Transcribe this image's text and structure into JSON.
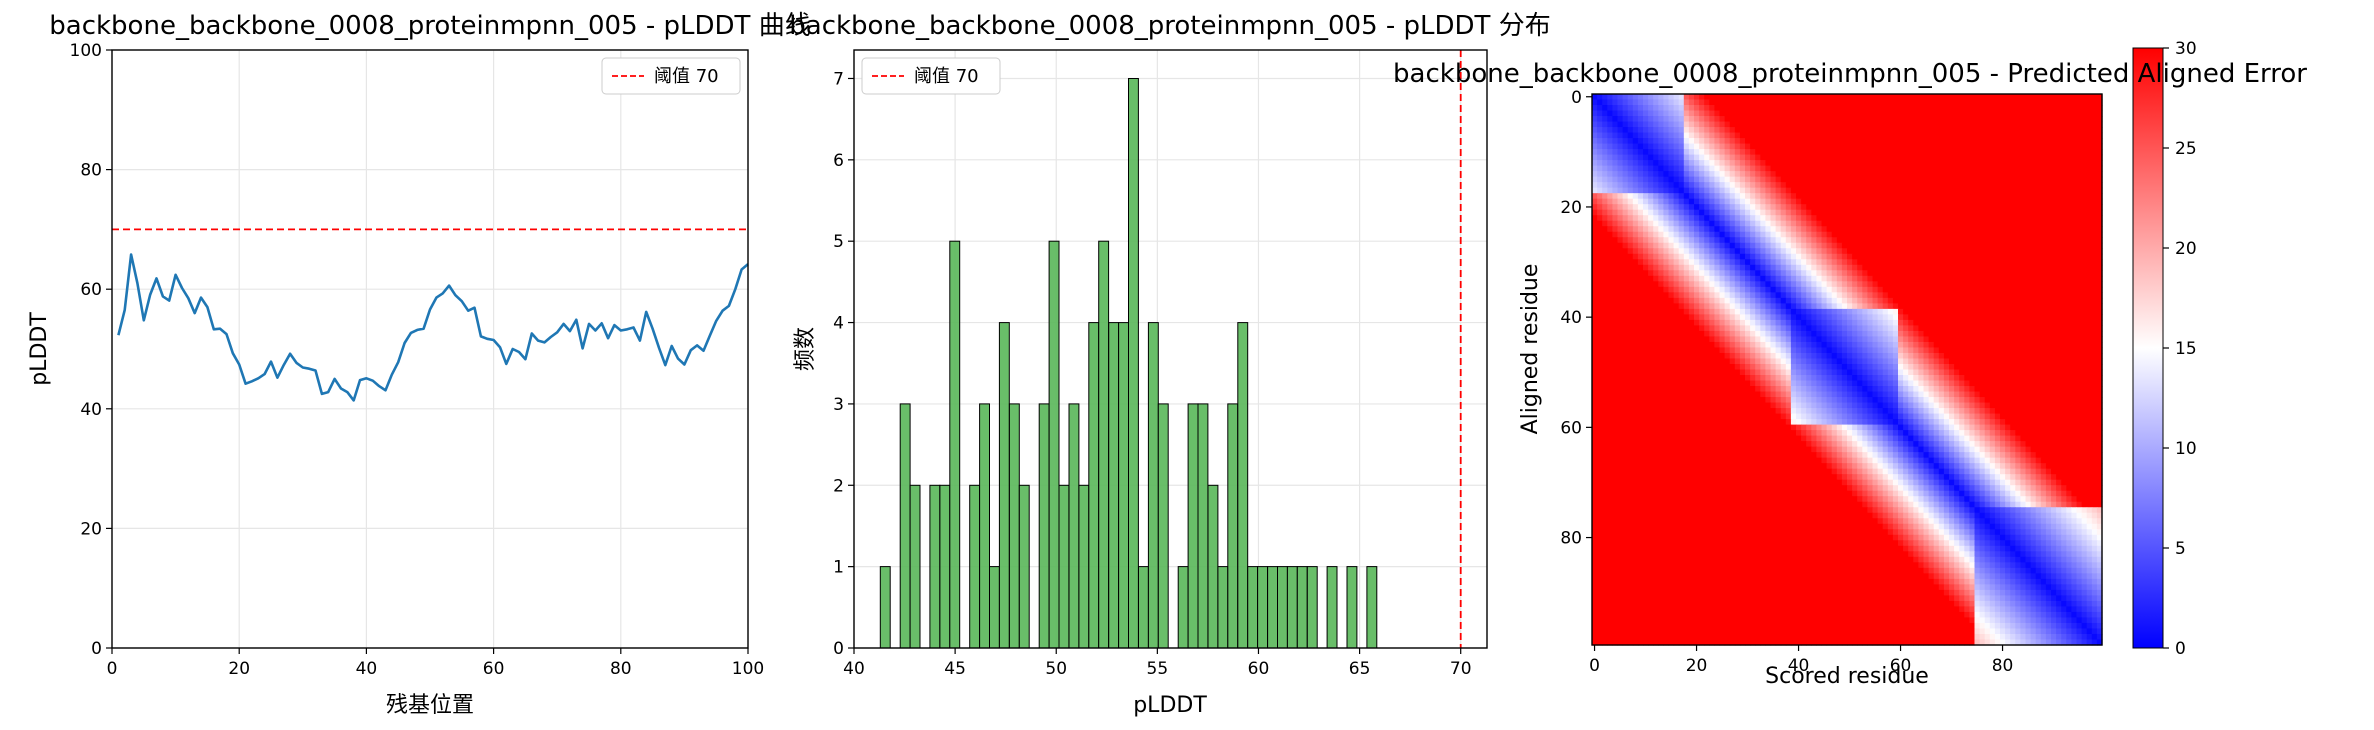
{
  "chart_data": [
    {
      "type": "line",
      "title": "backbone_backbone_0008_proteinmpnn_005 - pLDDT 曲线",
      "xlabel": "残基位置",
      "ylabel": "pLDDT",
      "xlim": [
        0,
        100
      ],
      "ylim": [
        0,
        100
      ],
      "xticks": [
        0,
        20,
        40,
        60,
        80,
        100
      ],
      "yticks": [
        0,
        20,
        40,
        60,
        80,
        100
      ],
      "grid": true,
      "legend": {
        "position": "top-right",
        "entries": [
          "阈值 70"
        ]
      },
      "threshold": {
        "value": 70,
        "label": "阈值 70",
        "color": "#ff0000"
      },
      "series": [
        {
          "color": "#1f77b4",
          "x": [
            1,
            2,
            3,
            4,
            5,
            6,
            7,
            8,
            9,
            10,
            11,
            12,
            13,
            14,
            15,
            16,
            17,
            18,
            19,
            20,
            21,
            22,
            23,
            24,
            25,
            26,
            27,
            28,
            29,
            30,
            31,
            32,
            33,
            34,
            35,
            36,
            37,
            38,
            39,
            40,
            41,
            42,
            43,
            44,
            45,
            46,
            47,
            48,
            49,
            50,
            51,
            52,
            53,
            54,
            55,
            56,
            57,
            58,
            59,
            60,
            61,
            62,
            63,
            64,
            65,
            66,
            67,
            68,
            69,
            70,
            71,
            72,
            73,
            74,
            75,
            76,
            77,
            78,
            79,
            80,
            81,
            82,
            83,
            84,
            85,
            86,
            87,
            88,
            89,
            90,
            91,
            92,
            93,
            94,
            95,
            96,
            97,
            98,
            99,
            100
          ],
          "y": [
            52.3,
            56.5,
            65.8,
            61.0,
            54.8,
            59.1,
            61.8,
            58.8,
            58.1,
            62.4,
            60.2,
            58.5,
            56.0,
            58.6,
            57.0,
            53.3,
            53.4,
            52.5,
            49.3,
            47.4,
            44.2,
            44.6,
            45.1,
            45.8,
            47.9,
            45.2,
            47.3,
            49.2,
            47.7,
            46.9,
            46.7,
            46.4,
            42.5,
            42.8,
            45.0,
            43.4,
            42.8,
            41.4,
            44.8,
            45.1,
            44.7,
            43.8,
            43.1,
            45.7,
            47.8,
            51.0,
            52.7,
            53.2,
            53.4,
            56.6,
            58.6,
            59.3,
            60.6,
            59.0,
            58.0,
            56.4,
            56.9,
            52.1,
            51.7,
            51.5,
            50.3,
            47.5,
            50.0,
            49.5,
            48.3,
            52.6,
            51.4,
            51.1,
            52.0,
            52.8,
            54.2,
            53.0,
            54.9,
            50.1,
            54.2,
            53.1,
            54.3,
            51.8,
            54.0,
            53.1,
            53.3,
            53.6,
            51.4,
            56.2,
            53.4,
            50.2,
            47.3,
            50.5,
            48.4,
            47.4,
            49.8,
            50.6,
            49.7,
            52.2,
            54.7,
            56.4,
            57.2,
            60.0,
            63.3,
            64.2
          ]
        }
      ]
    },
    {
      "type": "bar",
      "title": "backbone_backbone_0008_proteinmpnn_005 - pLDDT 分布",
      "xlabel": "pLDDT",
      "ylabel": "频数",
      "xlim": [
        40.0,
        71.3
      ],
      "ylim": [
        0,
        7.35
      ],
      "xticks": [
        40,
        45,
        50,
        55,
        60,
        65,
        70
      ],
      "yticks": [
        0,
        1,
        2,
        3,
        4,
        5,
        6,
        7
      ],
      "grid": true,
      "legend": {
        "position": "top-left",
        "entries": [
          "阈值 70"
        ]
      },
      "threshold": {
        "value": 70,
        "label": "阈值 70",
        "color": "#ff0000"
      },
      "bar_color": "#5cb85c",
      "bin_start": 41.3,
      "bin_width": 0.491,
      "counts": [
        1,
        0,
        3,
        2,
        0,
        2,
        2,
        5,
        0,
        2,
        3,
        1,
        4,
        3,
        2,
        0,
        3,
        5,
        2,
        3,
        2,
        4,
        5,
        4,
        4,
        7,
        1,
        4,
        3,
        0,
        1,
        3,
        3,
        2,
        1,
        3,
        4,
        1,
        1,
        1,
        1,
        1,
        1,
        1,
        0,
        1,
        0,
        1,
        0,
        1
      ]
    },
    {
      "type": "heatmap",
      "title": "backbone_backbone_0008_proteinmpnn_005 - Predicted Aligned Error",
      "xlabel": "Scored residue",
      "ylabel": "Aligned residue",
      "n": 100,
      "xticks": [
        0,
        20,
        40,
        60,
        80
      ],
      "yticks": [
        0,
        20,
        40,
        60,
        80
      ],
      "colormap": "bwr",
      "colorbar": {
        "min": 0,
        "max": 30,
        "ticks": [
          0,
          5,
          10,
          15,
          20,
          25,
          30
        ]
      },
      "domains": [
        [
          0,
          18
        ],
        [
          39,
          60
        ],
        [
          75,
          100
        ]
      ],
      "diagonal_error_range": [
        0.5,
        30
      ]
    }
  ]
}
